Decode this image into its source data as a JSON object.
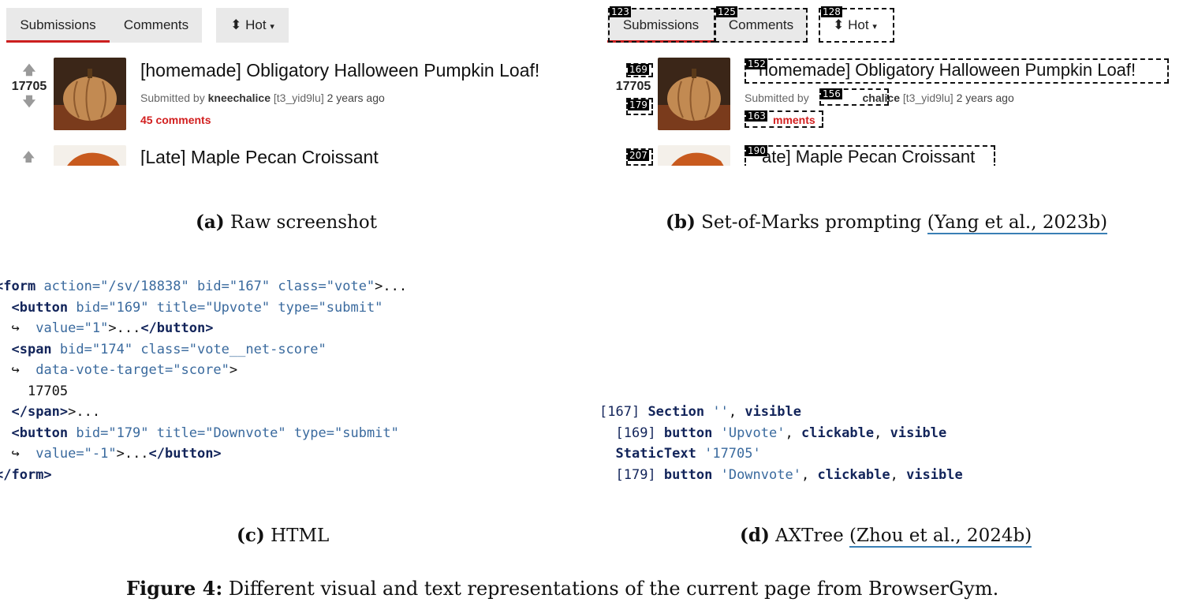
{
  "panel_a": {
    "tabs": [
      "Submissions",
      "Comments"
    ],
    "sort_label": "Hot",
    "posts": [
      {
        "score": "17705",
        "title": "[homemade] Obligatory Halloween Pumpkin Loaf!",
        "submitted_by_prefix": "Submitted by",
        "author": "kneechalice",
        "author_id": "[t3_yid9lu]",
        "age": "2 years ago",
        "comments": "45 comments"
      },
      {
        "title": "[Late] Maple Pecan Croissant"
      }
    ]
  },
  "panel_b": {
    "tabs": [
      "Submissions",
      "Comments"
    ],
    "sort_label": "Hot",
    "tab_marks": [
      "123",
      "125",
      "128"
    ],
    "score": "17705",
    "vote_marks": [
      "169",
      "179"
    ],
    "title_mark": "152",
    "title_text": "homemade] Obligatory Halloween Pumpkin Loaf!",
    "submitted_by_prefix": "Submitted by",
    "author_mark": "156",
    "author_tail": "chalice",
    "author_id": "[t3_yid9lu]",
    "age": "2 years ago",
    "comments_mark": "163",
    "comments_tail": "mments",
    "second_vote_mark": "207",
    "second_title_mark": "190",
    "second_title": "ate] Maple Pecan Croissant"
  },
  "captions": {
    "a_label": "(a)",
    "a_text": "Raw screenshot",
    "b_label": "(b)",
    "b_text": "Set-of-Marks prompting",
    "b_cite": "(Yang et al., 2023b)",
    "c_label": "(c)",
    "c_text": "HTML",
    "d_label": "(d)",
    "d_text": "AXTree",
    "d_cite": "(Zhou et al., 2024b)",
    "figure_label": "Figure 4:",
    "figure_text": "Different visual and text representations of the current page from BrowserGym."
  },
  "html_code": {
    "line1": {
      "open": "<form",
      "a1": "action=",
      "v1": "\"/sv/18838\"",
      "a2": "bid=",
      "v2": "\"167\"",
      "a3": "class=",
      "v3": "\"vote\"",
      "close": ">..."
    },
    "line2": {
      "open": "<button",
      "a1": "bid=",
      "v1": "\"169\"",
      "a2": "title=",
      "v2": "\"Upvote\"",
      "a3": "type=",
      "v3": "\"submit\""
    },
    "line3": {
      "wrap": "↪",
      "a1": "value=",
      "v1": "\"1\"",
      "rest": ">...",
      "close": "</button>",
      "end": ">"
    },
    "line4": {
      "open": "<span",
      "a1": "bid=",
      "v1": "\"174\"",
      "a2": "class=",
      "v2": "\"vote__net-score\""
    },
    "line5": {
      "wrap": "↪",
      "a1": "data-vote-target=",
      "v1": "\"score\"",
      "end": ">"
    },
    "line6": "17705",
    "line7": {
      "close": "</span>",
      "rest": ">..."
    },
    "line8": {
      "open": "<button",
      "a1": "bid=",
      "v1": "\"179\"",
      "a2": "title=",
      "v2": "\"Downvote\"",
      "a3": "type=",
      "v3": "\"submit\""
    },
    "line9": {
      "wrap": "↪",
      "a1": "value=",
      "v1": "\"-1\"",
      "rest": ">...",
      "close": "</button>",
      "end": ">"
    },
    "line10": {
      "close": "</form>",
      "end": ">"
    }
  },
  "axtree": {
    "line1": {
      "id": "[167]",
      "role": "Section",
      "name": "''",
      "sep": ",",
      "prop1": "visible"
    },
    "line2": {
      "id": "[169]",
      "role": "button",
      "name": "'Upvote'",
      "sep": ",",
      "prop1": "clickable",
      "sep2": ",",
      "prop2": "visible"
    },
    "line3": {
      "role": "StaticText",
      "name": "'17705'"
    },
    "line4": {
      "id": "[179]",
      "role": "button",
      "name": "'Downvote'",
      "sep": ",",
      "prop1": "clickable",
      "sep2": ",",
      "prop2": "visible"
    }
  }
}
